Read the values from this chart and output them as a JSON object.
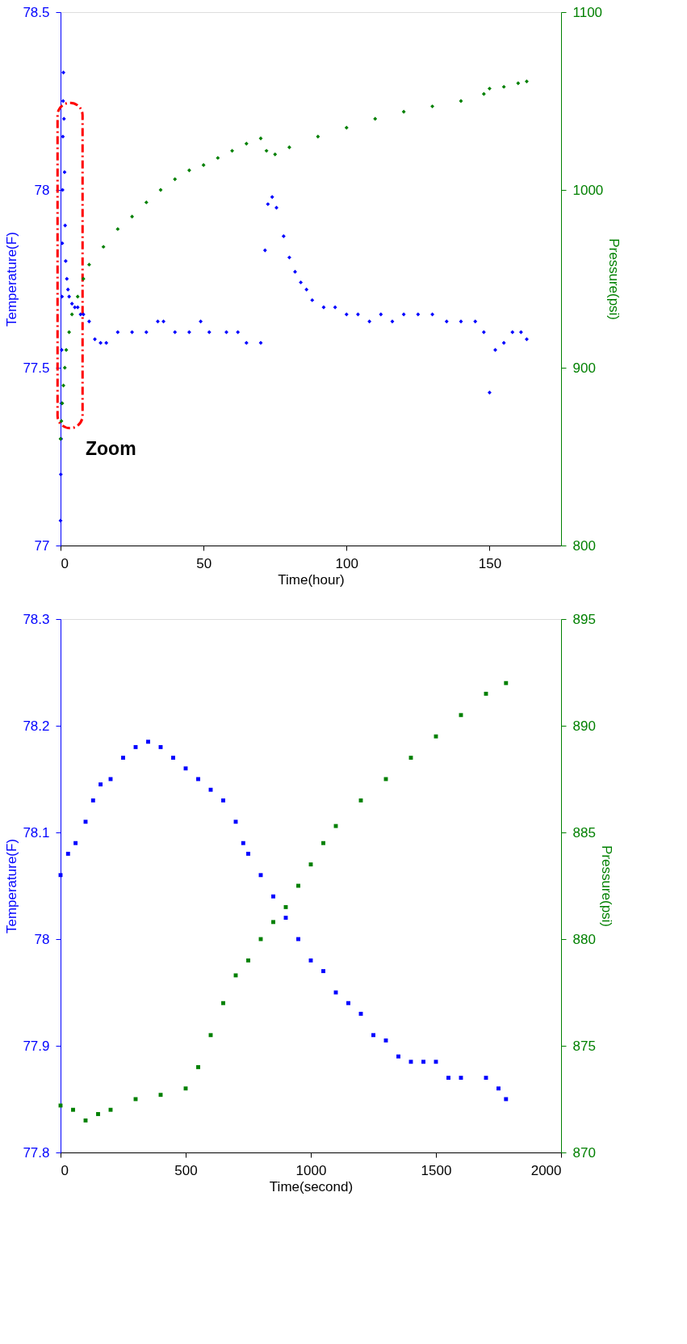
{
  "chart_data": [
    {
      "type": "scatter",
      "xlabel": "Time(hour)",
      "ylabel": "Temperature(F)",
      "y2label": "Pressure(psi)",
      "xlim": [
        0,
        175
      ],
      "xticks": [
        0,
        50,
        100,
        150
      ],
      "ylim": [
        77,
        78.5
      ],
      "yticks": [
        77,
        77.5,
        78,
        78.5
      ],
      "y2lim": [
        800,
        1100
      ],
      "y2ticks": [
        800,
        900,
        1000,
        1100
      ],
      "marker": "diamond",
      "grid": false,
      "legend": false,
      "annotations": [
        "Zoom"
      ],
      "series": [
        {
          "color": "#0000ff",
          "x": [
            0,
            0.1,
            0.2,
            0.3,
            0.4,
            0.5,
            0.6,
            0.7,
            0.8,
            0.9,
            1.0,
            1.2,
            1.4,
            1.6,
            1.8,
            2.2,
            2.6,
            3,
            4,
            5,
            6,
            7,
            8,
            10,
            12,
            14,
            16,
            20,
            25,
            30,
            34,
            36,
            40,
            45,
            49,
            52,
            58,
            62,
            65,
            70,
            71.5,
            72.5,
            74,
            75.5,
            78,
            80,
            82,
            84,
            86,
            88,
            92,
            96,
            100,
            104,
            108,
            112,
            116,
            120,
            125,
            130,
            135,
            140,
            145,
            148,
            150,
            152,
            155,
            158,
            161,
            163
          ],
          "values": [
            77.07,
            77.2,
            77.3,
            77.4,
            77.55,
            77.7,
            77.85,
            78.0,
            78.15,
            78.25,
            78.33,
            78.2,
            78.05,
            77.9,
            77.8,
            77.75,
            77.72,
            77.7,
            77.68,
            77.67,
            77.67,
            77.65,
            77.65,
            77.63,
            77.58,
            77.57,
            77.57,
            77.6,
            77.6,
            77.6,
            77.63,
            77.63,
            77.6,
            77.6,
            77.63,
            77.6,
            77.6,
            77.6,
            77.57,
            77.57,
            77.83,
            77.96,
            77.98,
            77.95,
            77.87,
            77.81,
            77.77,
            77.74,
            77.72,
            77.69,
            77.67,
            77.67,
            77.65,
            77.65,
            77.63,
            77.65,
            77.63,
            77.65,
            77.65,
            77.65,
            77.63,
            77.63,
            77.63,
            77.6,
            77.43,
            77.55,
            77.57,
            77.6,
            77.6,
            77.58
          ]
        },
        {
          "color": "#008000",
          "axis": "y2",
          "x": [
            0,
            0.3,
            0.6,
            1,
            1.5,
            2,
            3,
            4,
            6,
            8,
            10,
            15,
            20,
            25,
            30,
            35,
            40,
            45,
            50,
            55,
            60,
            65,
            70,
            72,
            75,
            80,
            90,
            100,
            110,
            120,
            130,
            140,
            148,
            150,
            155,
            160,
            163
          ],
          "values": [
            860,
            870,
            880,
            890,
            900,
            910,
            920,
            930,
            940,
            950,
            958,
            968,
            978,
            985,
            993,
            1000,
            1006,
            1011,
            1014,
            1018,
            1022,
            1026,
            1029,
            1022,
            1020,
            1024,
            1030,
            1035,
            1040,
            1044,
            1047,
            1050,
            1054,
            1057,
            1058,
            1060,
            1061
          ]
        }
      ]
    },
    {
      "type": "scatter",
      "xlabel": "Time(second)",
      "ylabel": "Temperature(F)",
      "y2label": "Pressure(psi)",
      "xlim": [
        0,
        2000
      ],
      "xticks": [
        0,
        500,
        1000,
        1500,
        2000
      ],
      "ylim": [
        77.8,
        78.3
      ],
      "yticks": [
        77.8,
        77.9,
        78,
        78.1,
        78.2,
        78.3
      ],
      "y2lim": [
        870,
        895
      ],
      "y2ticks": [
        870,
        875,
        880,
        885,
        890,
        895
      ],
      "marker": "square",
      "grid": false,
      "legend": false,
      "series": [
        {
          "color": "#0000ff",
          "x": [
            0,
            30,
            60,
            100,
            130,
            160,
            200,
            250,
            300,
            350,
            400,
            450,
            500,
            550,
            600,
            650,
            700,
            730,
            750,
            800,
            850,
            900,
            950,
            1000,
            1050,
            1100,
            1150,
            1200,
            1250,
            1300,
            1350,
            1400,
            1450,
            1500,
            1550,
            1600,
            1700,
            1750,
            1780
          ],
          "values": [
            78.06,
            78.08,
            78.09,
            78.11,
            78.13,
            78.145,
            78.15,
            78.17,
            78.18,
            78.185,
            78.18,
            78.17,
            78.16,
            78.15,
            78.14,
            78.13,
            78.11,
            78.09,
            78.08,
            78.06,
            78.04,
            78.02,
            78.0,
            77.98,
            77.97,
            77.95,
            77.94,
            77.93,
            77.91,
            77.905,
            77.89,
            77.885,
            77.885,
            77.885,
            77.87,
            77.87,
            77.87,
            77.86,
            77.85
          ]
        },
        {
          "color": "#008000",
          "axis": "y2",
          "x": [
            0,
            50,
            100,
            150,
            200,
            300,
            400,
            500,
            550,
            600,
            650,
            700,
            750,
            800,
            850,
            900,
            950,
            1000,
            1050,
            1100,
            1200,
            1300,
            1400,
            1500,
            1600,
            1700,
            1780
          ],
          "values": [
            872.2,
            872,
            871.5,
            871.8,
            872,
            872.5,
            872.7,
            873,
            874,
            875.5,
            877,
            878.3,
            879,
            880,
            880.8,
            881.5,
            882.5,
            883.5,
            884.5,
            885.3,
            886.5,
            887.5,
            888.5,
            889.5,
            890.5,
            891.5,
            892
          ]
        }
      ]
    }
  ]
}
